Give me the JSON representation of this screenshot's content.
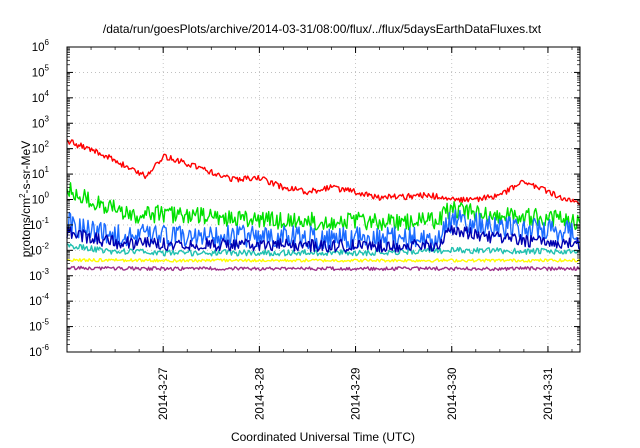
{
  "chart_data": {
    "type": "line",
    "title": "/data/run/goesPlots/archive/2014-03-31/08:00/flux/../flux/5daysEarthDataFluxes.txt",
    "xlabel": "Coordinated Universal Time (UTC)",
    "ylabel": "protons/cm²-s-sr-MeV",
    "ylabel_parts": {
      "a": "protons/cm",
      "sup": "2",
      "b": "-s-sr-MeV"
    },
    "yscale": "log",
    "ylim": [
      1e-06,
      1000000.0
    ],
    "y_ticks": [
      {
        "base": "10",
        "exp": "-6"
      },
      {
        "base": "10",
        "exp": "-5"
      },
      {
        "base": "10",
        "exp": "-4"
      },
      {
        "base": "10",
        "exp": "-3"
      },
      {
        "base": "10",
        "exp": "-2"
      },
      {
        "base": "10",
        "exp": "-1"
      },
      {
        "base": "10",
        "exp": "0"
      },
      {
        "base": "10",
        "exp": "1"
      },
      {
        "base": "10",
        "exp": "2"
      },
      {
        "base": "10",
        "exp": "3"
      },
      {
        "base": "10",
        "exp": "4"
      },
      {
        "base": "10",
        "exp": "5"
      },
      {
        "base": "10",
        "exp": "6"
      }
    ],
    "xlim": [
      "2014-03-26T00:00",
      "2014-03-31T08:00"
    ],
    "x_ticks": [
      "2014-3-27",
      "2014-3-28",
      "2014-3-29",
      "2014-3-30",
      "2014-3-31"
    ],
    "grid": true,
    "legend": "none",
    "series": [
      {
        "color": "#ff0000",
        "noise": 0.12,
        "x": [
          "2014-03-26T00:00",
          "2014-03-26T06:00",
          "2014-03-26T12:00",
          "2014-03-26T16:00",
          "2014-03-26T20:00",
          "2014-03-26T22:00",
          "2014-03-27T00:00",
          "2014-03-27T06:00",
          "2014-03-27T12:00",
          "2014-03-27T18:00",
          "2014-03-28T00:00",
          "2014-03-28T06:00",
          "2014-03-28T12:00",
          "2014-03-28T18:00",
          "2014-03-29T00:00",
          "2014-03-29T06:00",
          "2014-03-29T12:00",
          "2014-03-29T18:00",
          "2014-03-30T00:00",
          "2014-03-30T06:00",
          "2014-03-30T12:00",
          "2014-03-30T18:00",
          "2014-03-31T00:00",
          "2014-03-31T04:00",
          "2014-03-31T08:00"
        ],
        "y": [
          200,
          90,
          35,
          15,
          8,
          20,
          50,
          25,
          12,
          6,
          7,
          3,
          2,
          3,
          2,
          1.2,
          1.3,
          1.5,
          1.0,
          1.0,
          1.5,
          5,
          2,
          1,
          0.7
        ]
      },
      {
        "color": "#00e000",
        "noise": 0.35,
        "x": [
          "2014-03-26T00:00",
          "2014-03-26T06:00",
          "2014-03-26T12:00",
          "2014-03-26T18:00",
          "2014-03-27T00:00",
          "2014-03-27T12:00",
          "2014-03-28T00:00",
          "2014-03-28T12:00",
          "2014-03-29T00:00",
          "2014-03-29T12:00",
          "2014-03-29T20:00",
          "2014-03-30T00:00",
          "2014-03-30T06:00",
          "2014-03-30T12:00",
          "2014-03-31T00:00",
          "2014-03-31T08:00"
        ],
        "y": [
          2.5,
          0.9,
          0.4,
          0.25,
          0.28,
          0.2,
          0.16,
          0.14,
          0.14,
          0.12,
          0.15,
          0.45,
          0.3,
          0.25,
          0.18,
          0.14
        ]
      },
      {
        "color": "#1c6cff",
        "noise": 0.45,
        "x": [
          "2014-03-26T00:00",
          "2014-03-26T06:00",
          "2014-03-26T12:00",
          "2014-03-27T00:00",
          "2014-03-28T00:00",
          "2014-03-29T00:00",
          "2014-03-29T20:00",
          "2014-03-30T00:00",
          "2014-03-30T12:00",
          "2014-03-31T00:00",
          "2014-03-31T08:00"
        ],
        "y": [
          0.12,
          0.06,
          0.04,
          0.035,
          0.035,
          0.03,
          0.03,
          0.15,
          0.08,
          0.06,
          0.05
        ]
      },
      {
        "color": "#0000b0",
        "noise": 0.25,
        "x": [
          "2014-03-26T00:00",
          "2014-03-26T12:00",
          "2014-03-27T00:00",
          "2014-03-28T00:00",
          "2014-03-29T00:00",
          "2014-03-29T20:00",
          "2014-03-30T00:00",
          "2014-03-30T12:00",
          "2014-03-31T00:00",
          "2014-03-31T08:00"
        ],
        "y": [
          0.05,
          0.02,
          0.018,
          0.016,
          0.015,
          0.015,
          0.06,
          0.03,
          0.02,
          0.018
        ]
      },
      {
        "color": "#20c0b0",
        "noise": 0.12,
        "x": [
          "2014-03-26T00:00",
          "2014-03-26T12:00",
          "2014-03-27T00:00",
          "2014-03-28T00:00",
          "2014-03-29T00:00",
          "2014-03-30T00:00",
          "2014-03-31T00:00",
          "2014-03-31T08:00"
        ],
        "y": [
          0.015,
          0.009,
          0.008,
          0.008,
          0.008,
          0.01,
          0.009,
          0.008
        ]
      },
      {
        "color": "#ffff00",
        "noise": 0.06,
        "x": [
          "2014-03-26T00:00",
          "2014-03-27T00:00",
          "2014-03-28T00:00",
          "2014-03-29T00:00",
          "2014-03-30T00:00",
          "2014-03-31T00:00",
          "2014-03-31T08:00"
        ],
        "y": [
          0.0042,
          0.004,
          0.004,
          0.004,
          0.004,
          0.004,
          0.004
        ]
      },
      {
        "color": "#9c2f8a",
        "noise": 0.07,
        "x": [
          "2014-03-26T00:00",
          "2014-03-27T00:00",
          "2014-03-28T00:00",
          "2014-03-29T00:00",
          "2014-03-30T00:00",
          "2014-03-31T00:00",
          "2014-03-31T08:00"
        ],
        "y": [
          0.002,
          0.0019,
          0.0019,
          0.0019,
          0.0019,
          0.0019,
          0.0019
        ]
      }
    ]
  }
}
